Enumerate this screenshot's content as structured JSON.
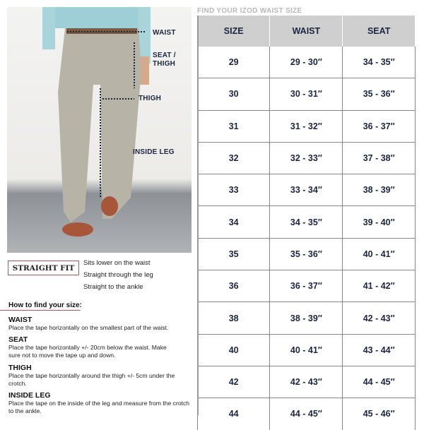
{
  "photo": {
    "labels": {
      "waist": "WAIST",
      "seat_thigh": "SEAT / THIGH",
      "thigh": "THIGH",
      "inside_leg": "INSIDE LEG"
    }
  },
  "fit": {
    "title": "STRAIGHT FIT",
    "features": [
      "Sits lower on the waist",
      "Straight through the leg",
      "Straight to the ankle"
    ]
  },
  "howto": {
    "title": "How to find your size:",
    "sections": [
      {
        "heading": "WAIST",
        "text": "Place the tape horizontally on the smallest part of the waist."
      },
      {
        "heading": "SEAT",
        "text": "Place the tape horizontally +/- 20cm below the waist. Make sure not to move the tape up and down."
      },
      {
        "heading": "THIGH",
        "text": "Place the tape horizontally around the thigh +/- 5cm under the crotch."
      },
      {
        "heading": "INSIDE LEG",
        "text": "Place the tape on the inside of the leg and measure from the crotch to the ankle."
      }
    ]
  },
  "size_table": {
    "title": "FIND YOUR IZOD WAIST SIZE",
    "headers": [
      "SIZE",
      "WAIST",
      "SEAT"
    ],
    "rows": [
      [
        "29",
        "29 - 30″",
        "34 - 35″"
      ],
      [
        "30",
        "30 - 31″",
        "35 - 36″"
      ],
      [
        "31",
        "31 - 32″",
        "36 - 37″"
      ],
      [
        "32",
        "32 - 33″",
        "37 - 38″"
      ],
      [
        "33",
        "33 - 34″",
        "38 - 39″"
      ],
      [
        "34",
        "34 - 35″",
        "39 - 40″"
      ],
      [
        "35",
        "35 - 36″",
        "40 - 41″"
      ],
      [
        "36",
        "36 - 37″",
        "41 - 42″"
      ],
      [
        "38",
        "38 - 39″",
        "42 - 43″"
      ],
      [
        "40",
        "40 - 41″",
        "43 - 44″"
      ],
      [
        "42",
        "42 - 43″",
        "44 - 45″"
      ],
      [
        "44",
        "44 - 45″",
        "45 - 46″"
      ]
    ]
  },
  "colors": {
    "navy": "#1c2540",
    "accent": "#a05a60",
    "header_bg": "#cfcfcf",
    "pants": "#b7b3a6"
  }
}
